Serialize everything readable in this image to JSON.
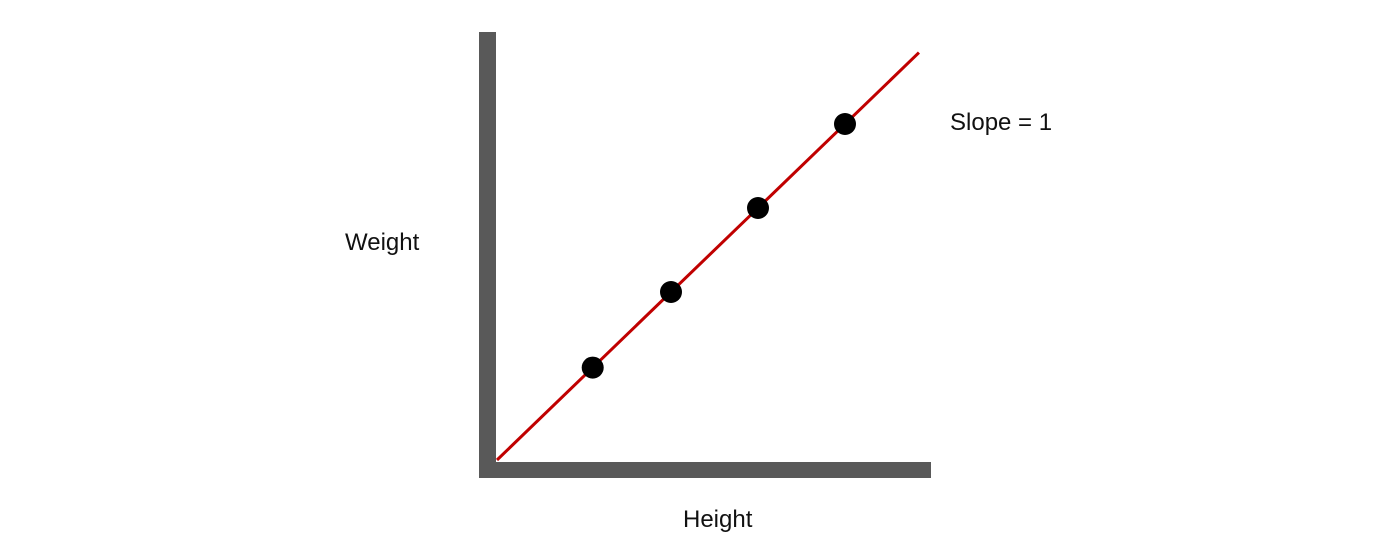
{
  "chart_data": {
    "type": "scatter",
    "xlabel": "Height",
    "ylabel": "Weight",
    "annotation": "Slope = 1",
    "grid": false,
    "xlim": [
      0,
      10
    ],
    "ylim": [
      0,
      10
    ],
    "points": [
      {
        "x": 2.2,
        "y": 2.2
      },
      {
        "x": 4.0,
        "y": 4.0
      },
      {
        "x": 6.0,
        "y": 6.0
      },
      {
        "x": 8.0,
        "y": 8.0
      }
    ],
    "fit_line": {
      "slope": 1,
      "intercept": 0,
      "x_start": 0,
      "x_end": 9.7
    },
    "colors": {
      "axis": "#595959",
      "line": "#c00000",
      "point": "#000000"
    }
  }
}
